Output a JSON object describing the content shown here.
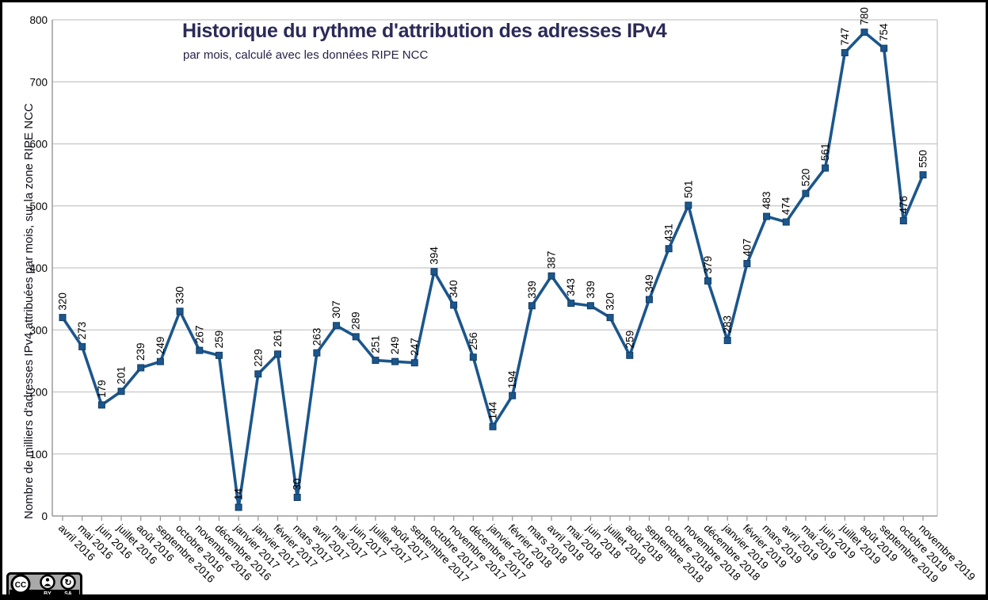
{
  "chart_data": {
    "type": "line",
    "title": "Historique du rythme d'attribution des adresses IPv4",
    "subtitle": "par mois, calculé avec les données RIPE NCC",
    "ylabel": "Nombre de milliers d'adresses IPv4 attribuées par mois, sur la zone RIPE NCC",
    "xlabel": "",
    "categories": [
      "avril 2016",
      "mai 2016",
      "juin 2016",
      "juillet 2016",
      "août 2016",
      "septembre 2016",
      "octobre 2016",
      "novembre 2016",
      "décembre 2016",
      "janvier 2017",
      "janvier 2017",
      "février 2017",
      "mars 2017",
      "avril 2017",
      "mai 2017",
      "juin 2017",
      "juillet 2017",
      "août 2017",
      "septembre 2017",
      "octobre 2017",
      "novembre 2017",
      "décembre 2017",
      "janvier 2018",
      "février 2018",
      "mars 2018",
      "avril 2018",
      "mai 2018",
      "juin 2018",
      "juillet 2018",
      "août 2018",
      "septembre 2018",
      "octobre 2018",
      "novembre 2018",
      "décembre 2018",
      "janvier 2019",
      "février 2019",
      "mars 2019",
      "avril 2019",
      "mai 2019",
      "juin 2019",
      "juillet 2019",
      "août 2019",
      "septembre 2019",
      "octobre 2019",
      "novembre 2019"
    ],
    "values": [
      320,
      273,
      179,
      201,
      239,
      249,
      330,
      267,
      259,
      14,
      229,
      261,
      30,
      263,
      307,
      289,
      251,
      249,
      247,
      394,
      340,
      256,
      144,
      194,
      339,
      387,
      343,
      339,
      320,
      259,
      349,
      431,
      501,
      379,
      283,
      407,
      483,
      474,
      520,
      561,
      747,
      780,
      754,
      476,
      550
    ],
    "ylim": [
      0,
      800
    ],
    "ytick_step": 100,
    "grid": true,
    "legend_position": "none",
    "data_labels": true,
    "marker": "square",
    "colors": {
      "series_line": "#1b568c",
      "marker_fill": "#1b568c",
      "marker_stroke": "#123c63",
      "title": "#2c2a57",
      "gridline": "#c6c6c6",
      "axis": "#9b9b9b",
      "label_text": "#000000"
    }
  },
  "footer": {
    "license": {
      "cc": "CC",
      "by": "BY",
      "sa": "SA"
    }
  }
}
